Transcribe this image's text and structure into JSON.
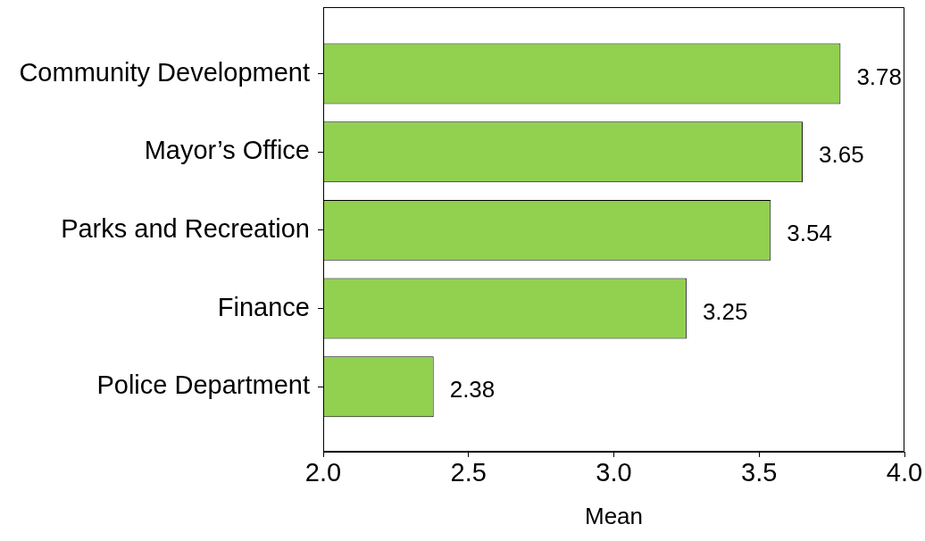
{
  "chart_data": {
    "type": "bar",
    "orientation": "horizontal",
    "categories": [
      "Community Development",
      "Mayor’s Office",
      "Parks and Recreation",
      "Finance",
      "Police Department"
    ],
    "values": [
      3.78,
      3.65,
      3.54,
      3.25,
      2.38
    ],
    "color": "#92d050",
    "xlabel": "Mean",
    "xlim": [
      2,
      4
    ],
    "xticks": [
      {
        "value": 2,
        "label": "2.0"
      },
      {
        "value": 2.5,
        "label": "2.5"
      },
      {
        "value": 3,
        "label": "3.0"
      },
      {
        "value": 3.5,
        "label": "3.5"
      },
      {
        "value": 4,
        "label": "4.0"
      }
    ],
    "data_labels": true,
    "grid": false,
    "legend": false
  }
}
